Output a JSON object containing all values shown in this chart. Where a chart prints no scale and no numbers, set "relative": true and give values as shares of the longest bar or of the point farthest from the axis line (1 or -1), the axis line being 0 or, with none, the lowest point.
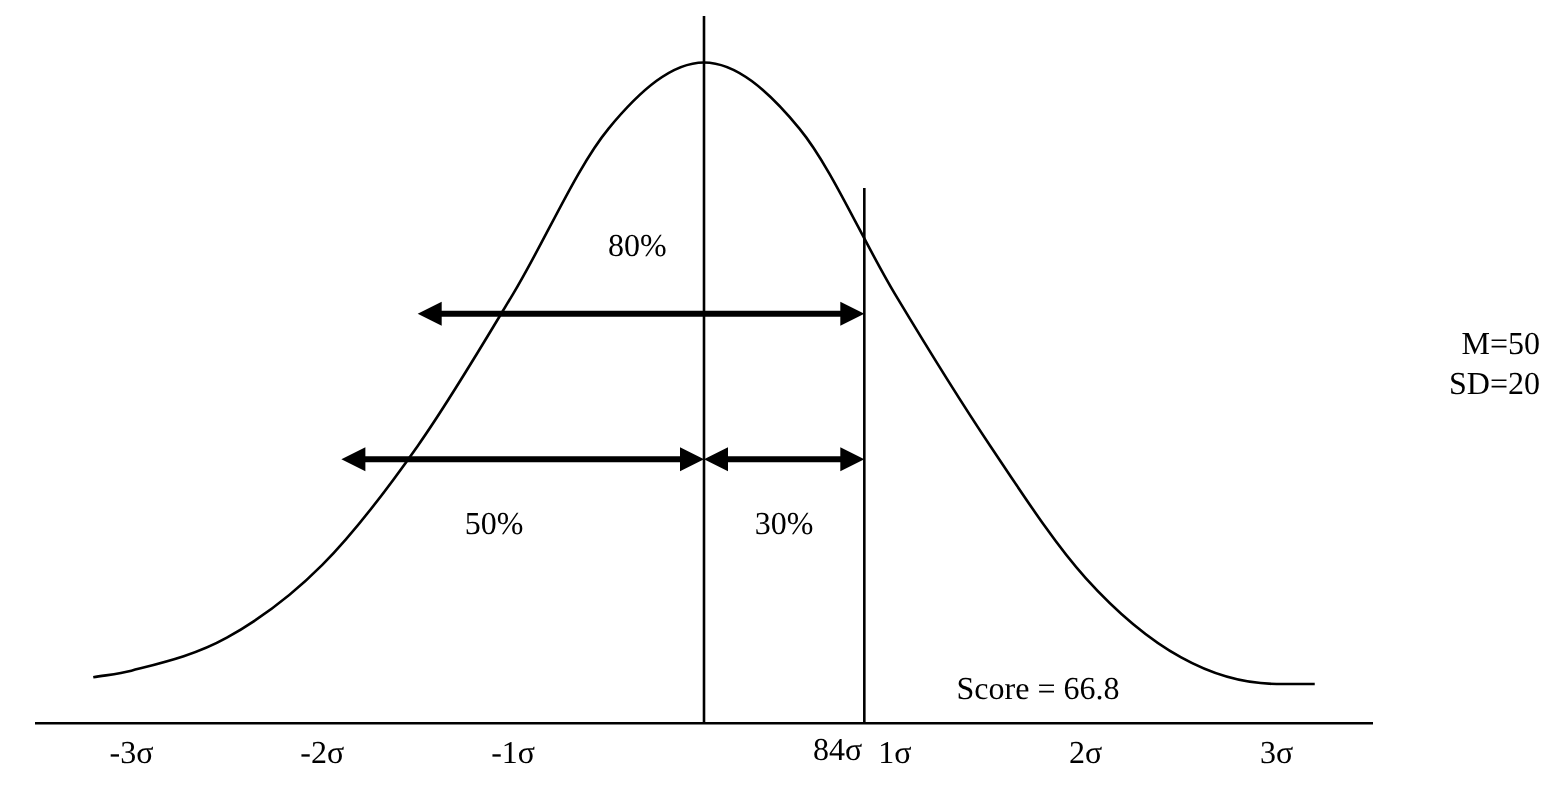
{
  "chart_data": {
    "type": "line",
    "relative": true,
    "x": [
      -3.2,
      -3,
      -2.5,
      -2,
      -1.5,
      -1,
      -0.5,
      0,
      0.5,
      1,
      1.5,
      2,
      2.5,
      3,
      3.2
    ],
    "series": [
      {
        "color": "#000000",
        "values": [
          0.07,
          0.08,
          0.13,
          0.24,
          0.42,
          0.65,
          0.9,
          1,
          0.9,
          0.65,
          0.42,
          0.22,
          0.1,
          0.06,
          0.06
        ]
      }
    ],
    "xlim": [
      -3.5,
      3.5
    ],
    "xticks": [
      {
        "value": -3,
        "label": "-3σ"
      },
      {
        "value": -2,
        "label": "-2σ"
      },
      {
        "value": -1,
        "label": "-1σ"
      },
      {
        "value": 1,
        "label": "1σ"
      },
      {
        "value": 2,
        "label": "2σ"
      },
      {
        "value": 3,
        "label": "3σ"
      }
    ],
    "ref_lines": [
      {
        "axis": "x",
        "value": 0,
        "color": "#000000"
      },
      {
        "axis": "x",
        "value": 0.84,
        "color": "#000000",
        "label": "84σ"
      }
    ],
    "annotations": [
      "80%",
      "50%",
      "30%",
      "Score = 66.8",
      "M=50",
      "SD=20"
    ],
    "grid": false,
    "legend": false,
    "marker": "none",
    "line_style": "solid"
  }
}
